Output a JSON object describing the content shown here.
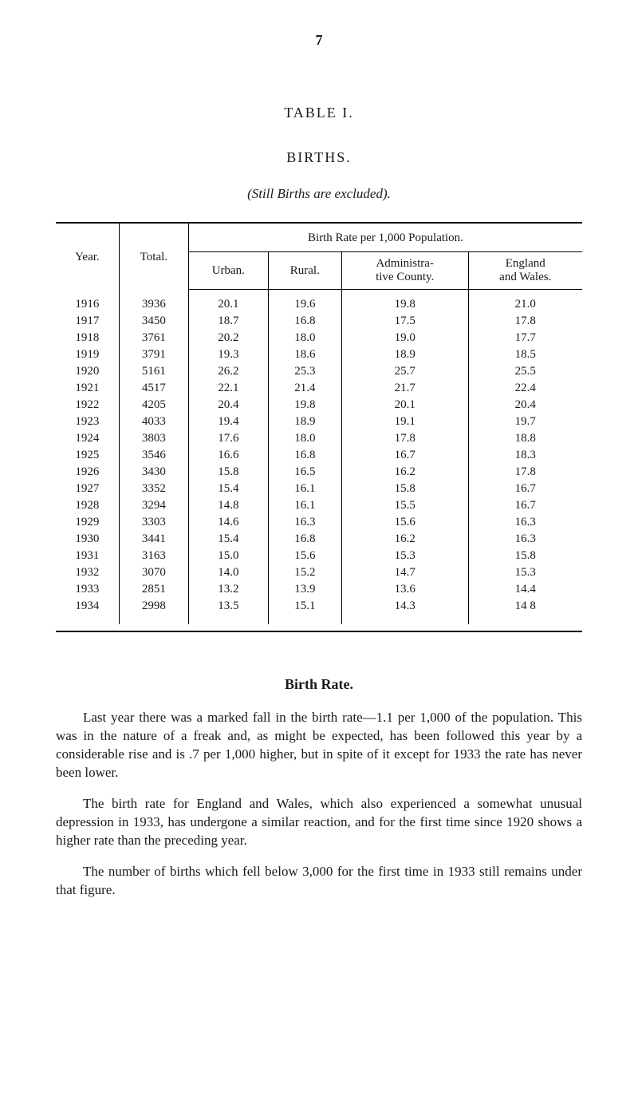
{
  "page_number": "7",
  "table_label": "TABLE I.",
  "births_heading": "BIRTHS.",
  "subheading": "(Still Births are excluded).",
  "table": {
    "type": "table",
    "spanner_label": "Birth Rate per 1,000 Population.",
    "columns": {
      "year": "Year.",
      "total": "Total.",
      "urban": "Urban.",
      "rural": "Rural.",
      "admin": "Administra-\ntive County.",
      "england": "England\nand Wales."
    },
    "rows": [
      {
        "year": "1916",
        "total": "3936",
        "urban": "20.1",
        "rural": "19.6",
        "admin": "19.8",
        "england": "21.0"
      },
      {
        "year": "1917",
        "total": "3450",
        "urban": "18.7",
        "rural": "16.8",
        "admin": "17.5",
        "england": "17.8"
      },
      {
        "year": "1918",
        "total": "3761",
        "urban": "20.2",
        "rural": "18.0",
        "admin": "19.0",
        "england": "17.7"
      },
      {
        "year": "1919",
        "total": "3791",
        "urban": "19.3",
        "rural": "18.6",
        "admin": "18.9",
        "england": "18.5"
      },
      {
        "year": "1920",
        "total": "5161",
        "urban": "26.2",
        "rural": "25.3",
        "admin": "25.7",
        "england": "25.5"
      },
      {
        "year": "1921",
        "total": "4517",
        "urban": "22.1",
        "rural": "21.4",
        "admin": "21.7",
        "england": "22.4"
      },
      {
        "year": "1922",
        "total": "4205",
        "urban": "20.4",
        "rural": "19.8",
        "admin": "20.1",
        "england": "20.4"
      },
      {
        "year": "1923",
        "total": "4033",
        "urban": "19.4",
        "rural": "18.9",
        "admin": "19.1",
        "england": "19.7"
      },
      {
        "year": "1924",
        "total": "3803",
        "urban": "17.6",
        "rural": "18.0",
        "admin": "17.8",
        "england": "18.8"
      },
      {
        "year": "1925",
        "total": "3546",
        "urban": "16.6",
        "rural": "16.8",
        "admin": "16.7",
        "england": "18.3"
      },
      {
        "year": "1926",
        "total": "3430",
        "urban": "15.8",
        "rural": "16.5",
        "admin": "16.2",
        "england": "17.8"
      },
      {
        "year": "1927",
        "total": "3352",
        "urban": "15.4",
        "rural": "16.1",
        "admin": "15.8",
        "england": "16.7"
      },
      {
        "year": "1928",
        "total": "3294",
        "urban": "14.8",
        "rural": "16.1",
        "admin": "15.5",
        "england": "16.7"
      },
      {
        "year": "1929",
        "total": "3303",
        "urban": "14.6",
        "rural": "16.3",
        "admin": "15.6",
        "england": "16.3"
      },
      {
        "year": "1930",
        "total": "3441",
        "urban": "15.4",
        "rural": "16.8",
        "admin": "16.2",
        "england": "16.3"
      },
      {
        "year": "1931",
        "total": "3163",
        "urban": "15.0",
        "rural": "15.6",
        "admin": "15.3",
        "england": "15.8"
      },
      {
        "year": "1932",
        "total": "3070",
        "urban": "14.0",
        "rural": "15.2",
        "admin": "14.7",
        "england": "15.3"
      },
      {
        "year": "1933",
        "total": "2851",
        "urban": "13.2",
        "rural": "13.9",
        "admin": "13.6",
        "england": "14.4"
      },
      {
        "year": "1934",
        "total": "2998",
        "urban": "13.5",
        "rural": "15.1",
        "admin": "14.3",
        "england": "14 8"
      }
    ],
    "rule_color": "#000000",
    "header_fontsize": 15,
    "body_fontsize": 15
  },
  "section_heading": "Birth Rate.",
  "paragraphs": [
    "Last year there was a marked fall in the birth rate—1.1 per 1,000 of the population. This was in the nature of a freak and, as might be expected, has been followed this year by a considerable rise and is .7 per 1,000 higher, but in spite of it except for 1933 the rate has never been lower.",
    "The birth rate for England and Wales, which also experienced a somewhat unusual depression in 1933, has undergone a similar reaction, and for the first time since 1920 shows a higher rate than the preceding year.",
    "The number of births which fell below 3,000 for the first time in 1933 still remains under that figure."
  ],
  "colors": {
    "background": "#ffffff",
    "text": "#1a1a1a",
    "rule": "#000000"
  },
  "typography": {
    "body_font": "Times New Roman",
    "page_number_fontsize": 18,
    "heading_fontsize": 18,
    "body_fontsize": 17
  }
}
